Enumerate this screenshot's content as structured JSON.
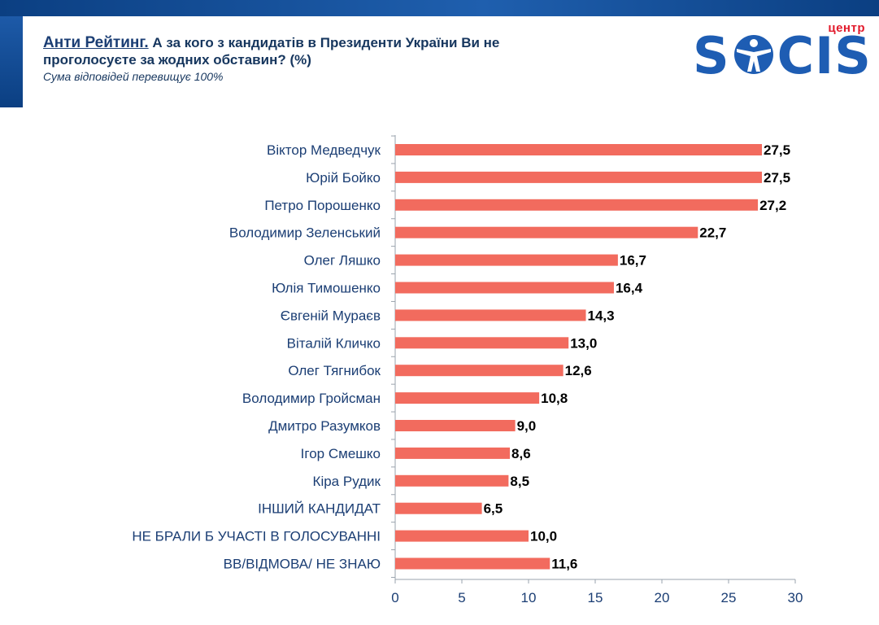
{
  "header": {
    "title_lead": "Анти Рейтинг.",
    "title_rest": " А за кого з кандидатів в Президенти України Ви не",
    "title_line2": "проголосуєте за жодних обставин? (%)",
    "subtitle": "Сума відповідей перевищує 100%"
  },
  "logo": {
    "small": "центр",
    "main_left": "S",
    "main_right": "CIS"
  },
  "colors": {
    "bar": "#f26b5e",
    "brand_blue": "#1e5db3",
    "brand_red": "#e21b2c",
    "axis": "#9aa3ad"
  },
  "chart_data": {
    "type": "bar",
    "orientation": "horizontal",
    "categories": [
      "Віктор Медведчук",
      "Юрій Бойко",
      "Петро Порошенко",
      "Володимир Зеленський",
      "Олег Ляшко",
      "Юлія Тимошенко",
      "Євгеній Мураєв",
      "Віталій Кличко",
      "Олег Тягнибок",
      "Володимир Гройсман",
      "Дмитро Разумков",
      "Ігор Смешко",
      "Кіра Рудик",
      "ІНШИЙ КАНДИДАТ",
      "НЕ БРАЛИ Б УЧАСТІ В ГОЛОСУВАННІ",
      "ВВ/ВІДМОВА/ НЕ ЗНАЮ"
    ],
    "values": [
      27.5,
      27.5,
      27.2,
      22.7,
      16.7,
      16.4,
      14.3,
      13.0,
      12.6,
      10.8,
      9.0,
      8.6,
      8.5,
      6.5,
      10.0,
      11.6
    ],
    "value_labels": [
      "27,5",
      "27,5",
      "27,2",
      "22,7",
      "16,7",
      "16,4",
      "14,3",
      "13,0",
      "12,6",
      "10,8",
      "9,0",
      "8,6",
      "8,5",
      "6,5",
      "10,0",
      "11,6"
    ],
    "xlim": [
      0,
      30
    ],
    "xticks": [
      "0",
      "5",
      "10",
      "15",
      "20",
      "25",
      "30"
    ],
    "grid": false,
    "legend": "none"
  }
}
